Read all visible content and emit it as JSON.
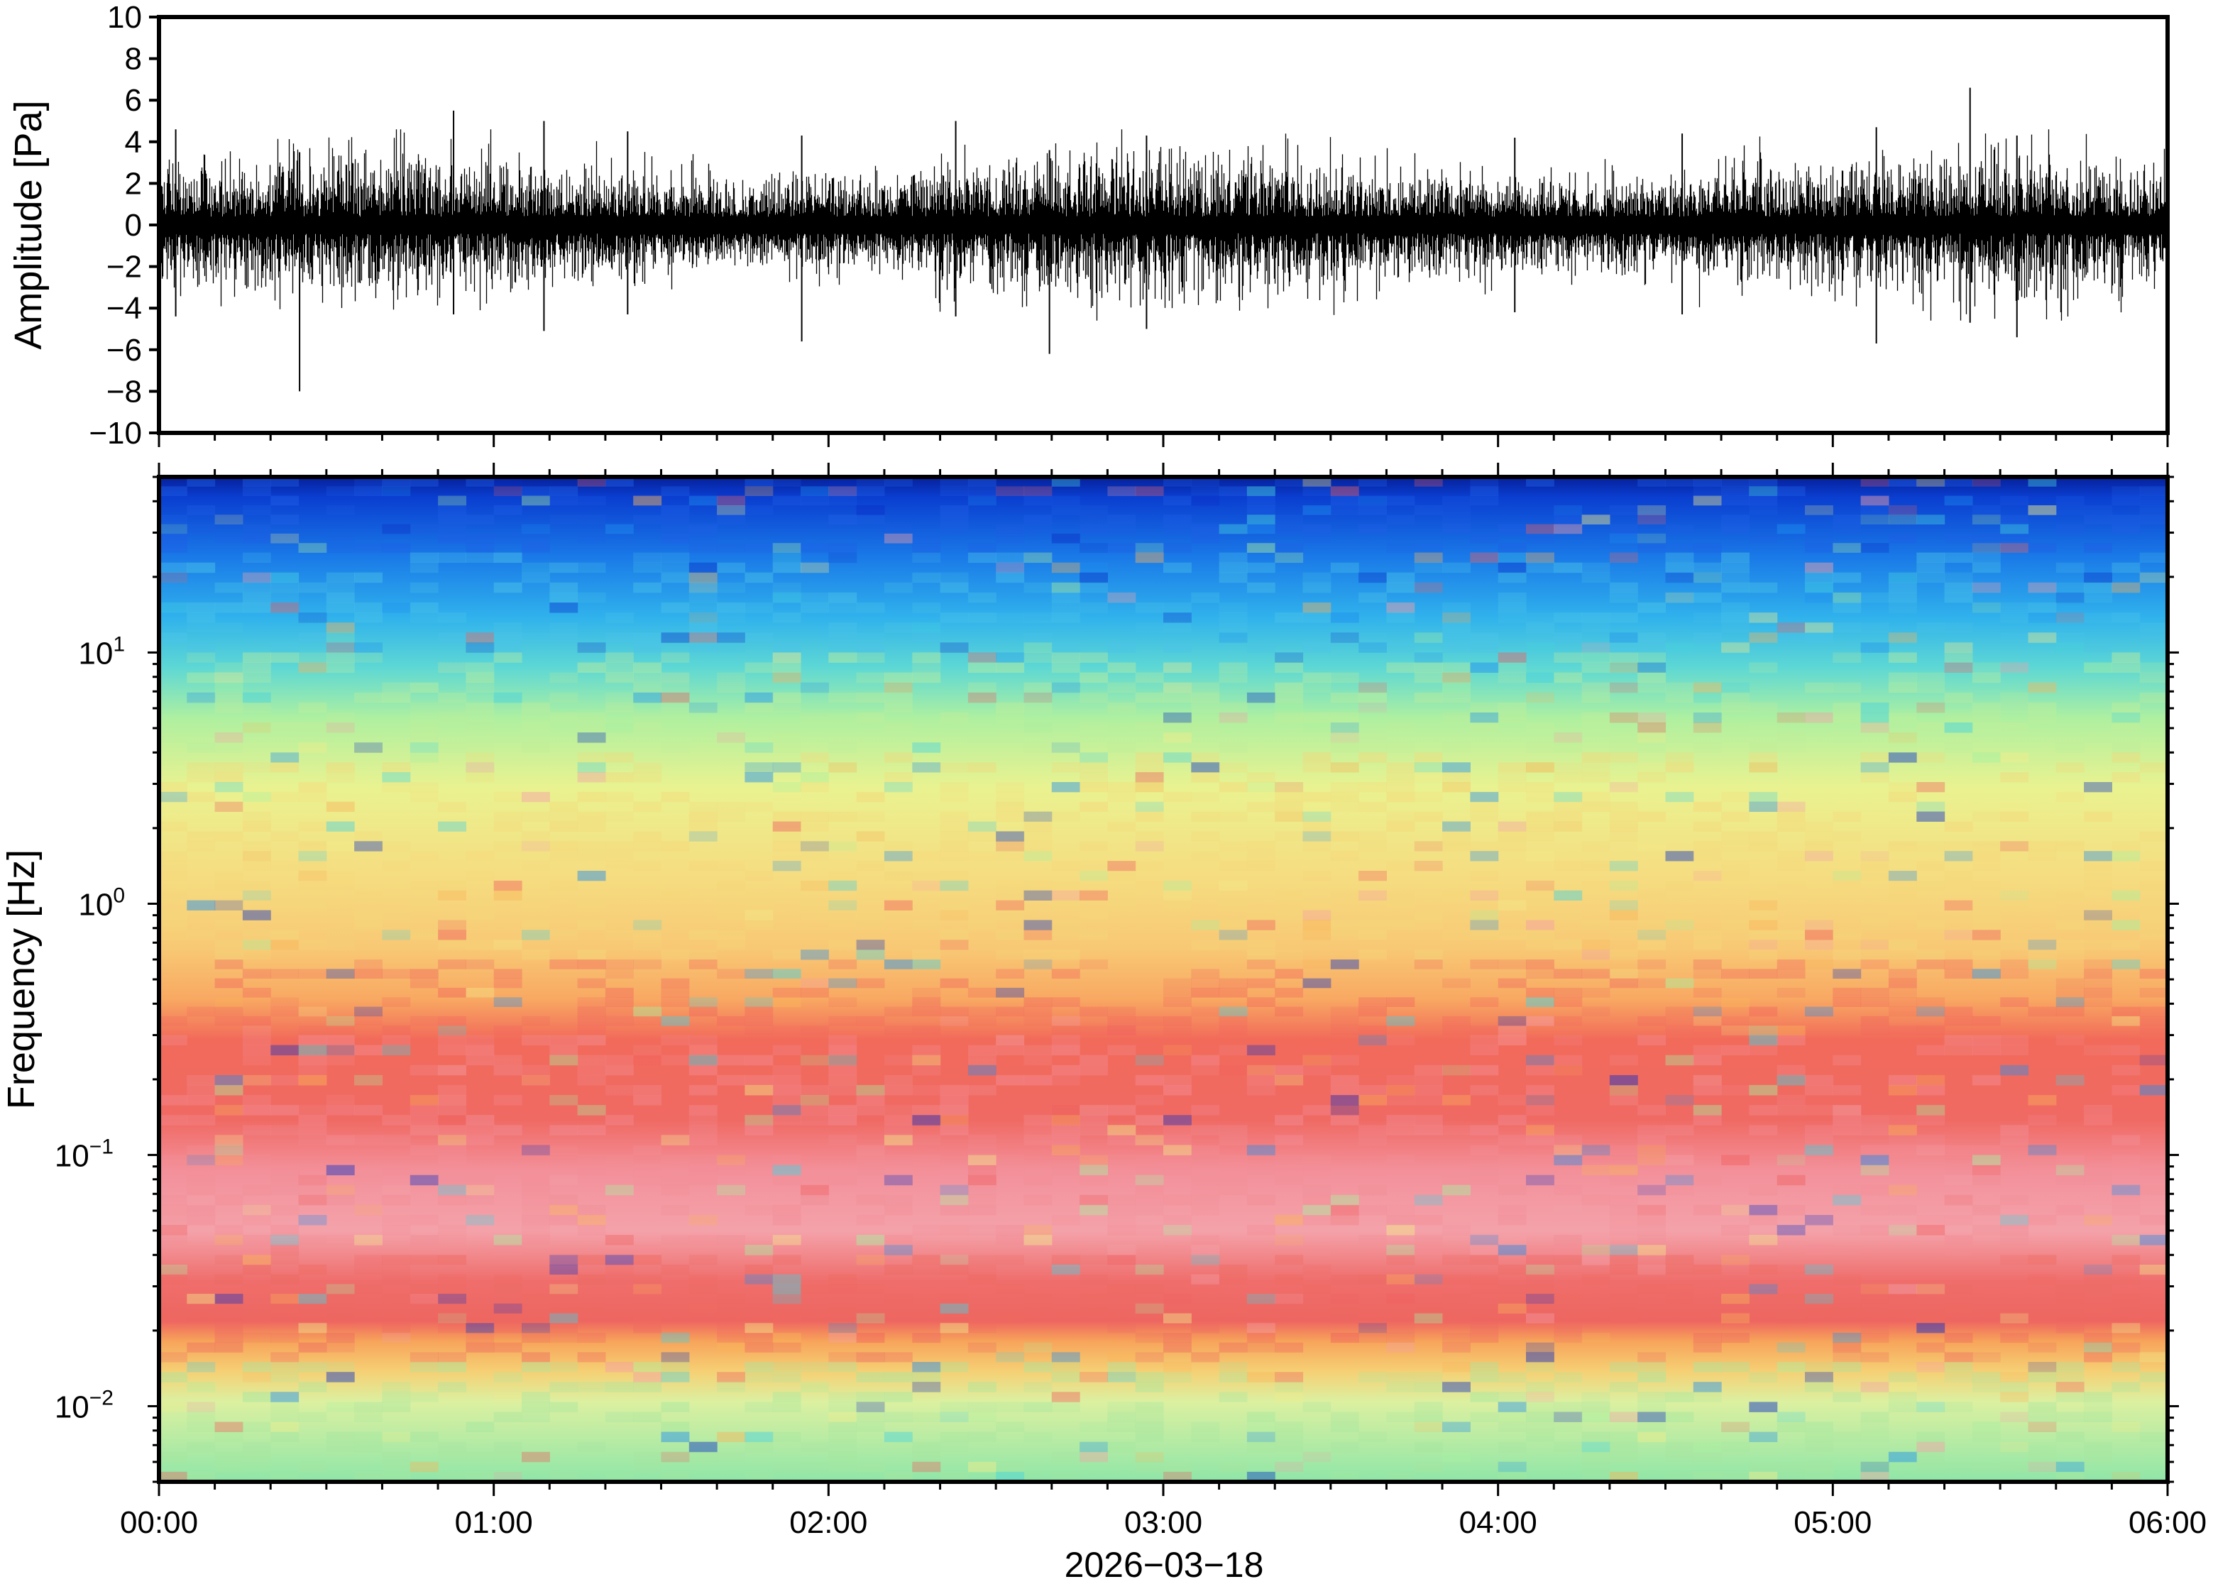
{
  "chart_data": [
    {
      "type": "line",
      "panel": "waveform",
      "ylabel": "Amplitude [Pa]",
      "ylim": [
        -10,
        10
      ],
      "yticks": [
        10,
        8,
        6,
        4,
        2,
        0,
        -2,
        -4,
        -6,
        -8,
        -10
      ],
      "ytick_labels": [
        "10",
        "8",
        "6",
        "4",
        "2",
        "0",
        "−2",
        "−4",
        "−6",
        "−8",
        "−10"
      ],
      "xlim_hours": [
        0,
        6
      ],
      "series_color": "#000000",
      "series": [
        {
          "x_hours": [
            0.05,
            0.42,
            0.88,
            1.15,
            1.4,
            1.92,
            2.38,
            2.66,
            2.95,
            4.05,
            4.55,
            5.13,
            5.41,
            5.55
          ],
          "peaks_pa": [
            4.6,
            3.5,
            5.5,
            5.0,
            4.5,
            4.3,
            5.0,
            3.6,
            4.3,
            4.2,
            4.4,
            4.7,
            6.6,
            4.3
          ],
          "troughs_pa": [
            -4.4,
            -8.0,
            -4.3,
            -5.1,
            -4.3,
            -5.6,
            -4.4,
            -6.2,
            -5.0,
            -4.2,
            -4.3,
            -5.7,
            -4.7,
            -5.4
          ],
          "typical_envelope_pa": 2.2
        }
      ]
    },
    {
      "type": "heatmap",
      "panel": "spectrogram",
      "ylabel": "Frequency [Hz]",
      "yscale": "log",
      "ylim_hz": [
        0.005,
        50
      ],
      "yticks_hz": [
        10,
        1,
        0.1,
        0.01
      ],
      "ytick_labels": [
        {
          "base": "10",
          "exp": "1"
        },
        {
          "base": "10",
          "exp": "0"
        },
        {
          "base": "10",
          "exp": "−1"
        },
        {
          "base": "10",
          "exp": "−2"
        }
      ],
      "xlabel": "2026−03−18",
      "xlim_hours": [
        0,
        6
      ],
      "xticks": [
        "00:00",
        "01:00",
        "02:00",
        "03:00",
        "04:00",
        "05:00",
        "06:00"
      ],
      "colormap": [
        "#0a2fc8",
        "#1f8ff0",
        "#46d2e0",
        "#a8f0a0",
        "#f2ec8a",
        "#f9b45a",
        "#f06060",
        "#f4a0a8"
      ],
      "bands": [
        {
          "freq_hz": [
            25,
            50
          ],
          "color": "#1f5fe6"
        },
        {
          "freq_hz": [
            10,
            25
          ],
          "color": "#4cc4e8"
        },
        {
          "freq_hz": [
            4,
            10
          ],
          "color": "#c0ee9a"
        },
        {
          "freq_hz": [
            0.6,
            4
          ],
          "color": "#f5d77a"
        },
        {
          "freq_hz": [
            0.3,
            0.6
          ],
          "color": "#f26a5e"
        },
        {
          "freq_hz": [
            0.04,
            0.3
          ],
          "color": "#f38e96"
        },
        {
          "freq_hz": [
            0.015,
            0.04
          ],
          "color": "#ee6a62"
        },
        {
          "freq_hz": [
            0.005,
            0.015
          ],
          "color": "#a6e6a0"
        }
      ]
    }
  ]
}
